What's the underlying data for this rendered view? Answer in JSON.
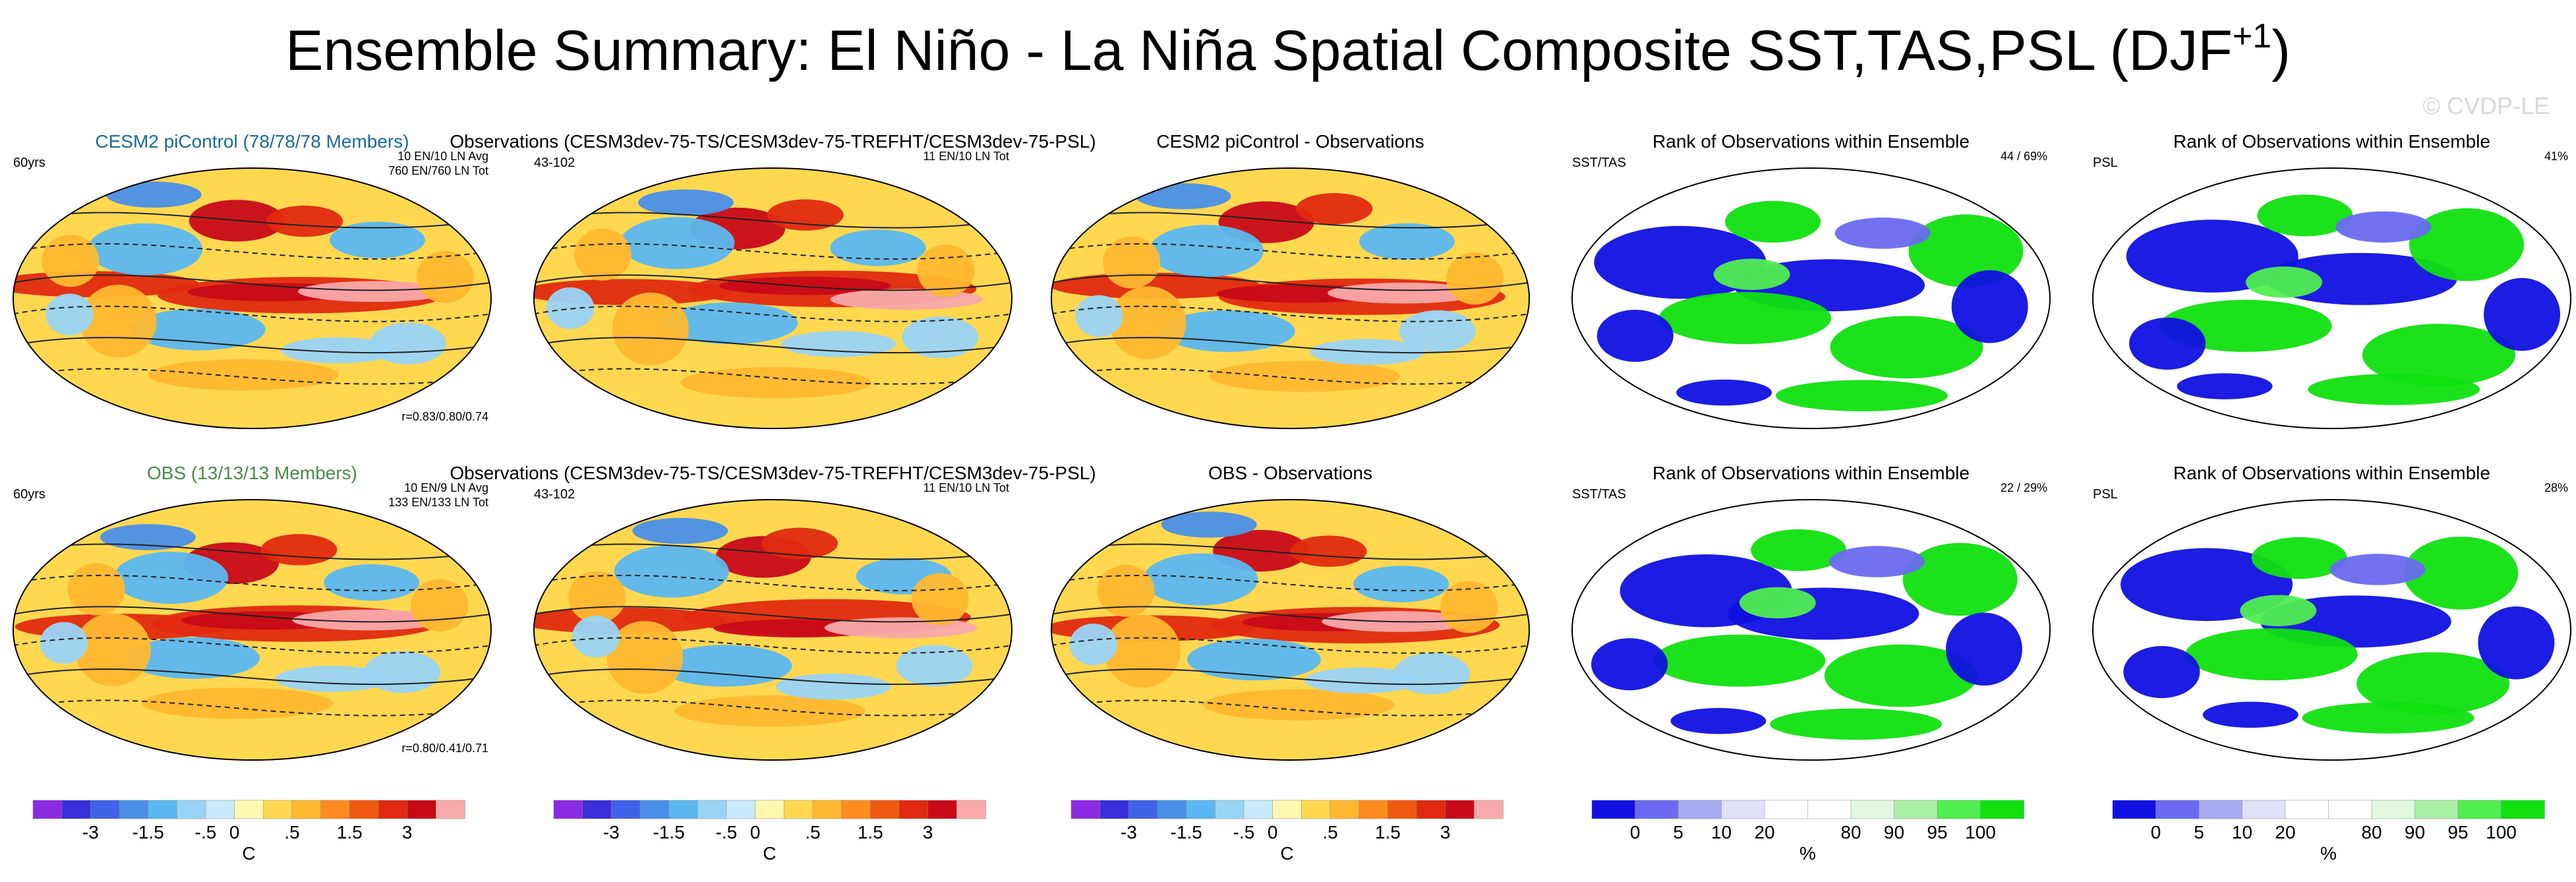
{
  "title": "Ensemble Summary: El Niño - La Niña Spatial Composite SST,TAS,PSL (DJF",
  "title_sup": "+1",
  "title_close": ")",
  "watermark": "© CVDP-LE",
  "colors": {
    "diverging": [
      "#8a2be2",
      "#3b2fd9",
      "#3f63e8",
      "#4a90e8",
      "#5bb8f0",
      "#9ad4f5",
      "#c8eafa",
      "#fff6b0",
      "#ffd850",
      "#ffb830",
      "#ff8c20",
      "#f05a10",
      "#e02a10",
      "#c80a18",
      "#f8aaaa"
    ],
    "rank": [
      "#1010e0",
      "#6a6af0",
      "#a8a8f0",
      "#e0e0f8",
      "#ffffff",
      "#ffffff",
      "#e0f8e0",
      "#a8f0a8",
      "#50ee50",
      "#10e010"
    ],
    "land_outline": "#ffffff",
    "contour": "#222222",
    "border": "#000000"
  },
  "chart_data": [
    {
      "type": "heatmap",
      "panel": "ens-mean-row1",
      "title": "CESM2 piControl (78/78/78 Members)",
      "title_color": "#1a6a9a",
      "left_label": "60yrs",
      "right_labels": [
        "10 EN/10 LN Avg",
        "760 EN/760 LN Tot"
      ],
      "bottom_right": "r=0.83/0.80/0.74"
    },
    {
      "type": "heatmap",
      "panel": "obs-row1",
      "title": "Observations (CESM3dev-75-TS/CESM3dev-75-TREFHT/CESM3dev-75-PSL)",
      "left_label": "43-102",
      "right_labels": [
        "11 EN/10 LN Tot"
      ]
    },
    {
      "type": "heatmap",
      "panel": "diff-row1",
      "title": "CESM2 piControl - Observations"
    },
    {
      "type": "heatmap",
      "panel": "rank-ssttas-row1",
      "title": "Rank of Observations within Ensemble",
      "left_label": "SST/TAS",
      "right_labels": [
        "44 /  69%"
      ]
    },
    {
      "type": "heatmap",
      "panel": "rank-psl-row1",
      "title": "Rank of Observations within Ensemble",
      "left_label": "PSL",
      "right_labels": [
        "41%"
      ]
    },
    {
      "type": "heatmap",
      "panel": "ens-mean-row2",
      "title": "OBS (13/13/13 Members)",
      "title_color": "#4a8a4a",
      "left_label": "60yrs",
      "right_labels": [
        "10 EN/9 LN Avg",
        "133 EN/133 LN Tot"
      ],
      "bottom_right": "r=0.80/0.41/0.71"
    },
    {
      "type": "heatmap",
      "panel": "obs-row2",
      "title": "Observations (CESM3dev-75-TS/CESM3dev-75-TREFHT/CESM3dev-75-PSL)",
      "left_label": "43-102",
      "right_labels": [
        "11 EN/10 LN Tot"
      ]
    },
    {
      "type": "heatmap",
      "panel": "diff-row2",
      "title": "OBS - Observations"
    },
    {
      "type": "heatmap",
      "panel": "rank-ssttas-row2",
      "title": "Rank of Observations within Ensemble",
      "left_label": "SST/TAS",
      "right_labels": [
        "22 /  29%"
      ]
    },
    {
      "type": "heatmap",
      "panel": "rank-psl-row2",
      "title": "Rank of Observations within Ensemble",
      "left_label": "PSL",
      "right_labels": [
        "28%"
      ]
    }
  ],
  "colorbars": [
    {
      "kind": "diverging",
      "ticks": [
        "-3",
        "-1.5",
        "-.5",
        "0",
        ".5",
        "1.5",
        "3"
      ],
      "tick_bounds": [
        2,
        4,
        6,
        7,
        9,
        11,
        13
      ],
      "unit": "C"
    },
    {
      "kind": "diverging",
      "ticks": [
        "-3",
        "-1.5",
        "-.5",
        "0",
        ".5",
        "1.5",
        "3"
      ],
      "tick_bounds": [
        2,
        4,
        6,
        7,
        9,
        11,
        13
      ],
      "unit": "C"
    },
    {
      "kind": "diverging",
      "ticks": [
        "-3",
        "-1.5",
        "-.5",
        "0",
        ".5",
        "1.5",
        "3"
      ],
      "tick_bounds": [
        2,
        4,
        6,
        7,
        9,
        11,
        13
      ],
      "unit": "C"
    },
    {
      "kind": "rank",
      "ticks": [
        "0",
        "5",
        "10",
        "20",
        "80",
        "90",
        "95",
        "100"
      ],
      "tick_bounds": [
        1,
        2,
        3,
        4,
        6,
        7,
        8,
        9
      ],
      "unit": "%"
    },
    {
      "kind": "rank",
      "ticks": [
        "0",
        "5",
        "10",
        "20",
        "80",
        "90",
        "95",
        "100"
      ],
      "tick_bounds": [
        1,
        2,
        3,
        4,
        6,
        7,
        8,
        9
      ],
      "unit": "%"
    }
  ]
}
